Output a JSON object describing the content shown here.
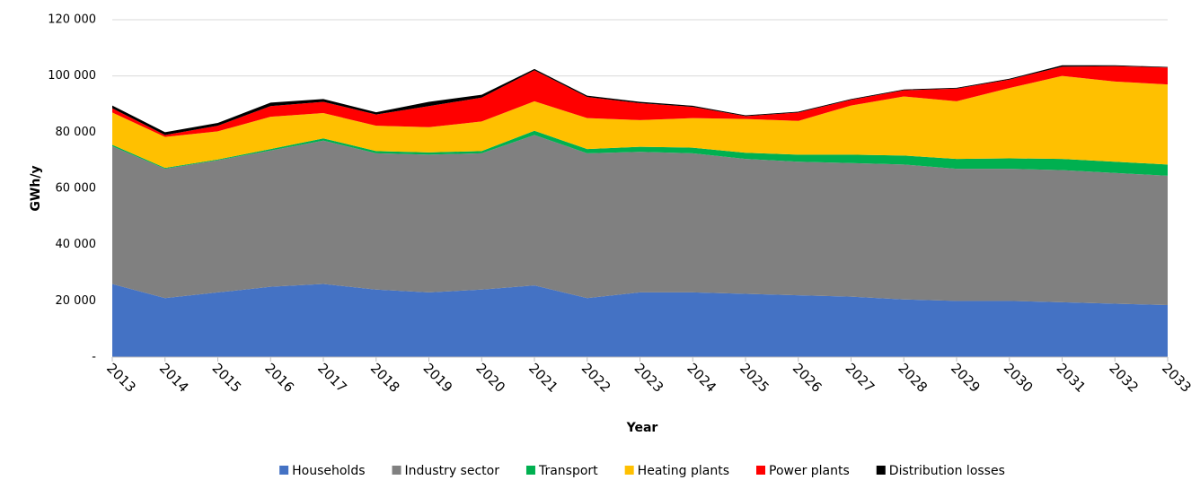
{
  "chart_data": {
    "type": "stacked-area",
    "x_label": "Year",
    "y_label": "GWh/y",
    "categories": [
      "2013",
      "2014",
      "2015",
      "2016",
      "2017",
      "2018",
      "2019",
      "2020",
      "2021",
      "2022",
      "2023",
      "2024",
      "2025",
      "2026",
      "2027",
      "2028",
      "2029",
      "2030",
      "2031",
      "2032",
      "2033"
    ],
    "ylim": [
      0,
      120000
    ],
    "yticks": [
      {
        "value": 0,
        "label": "-"
      },
      {
        "value": 20000,
        "label": "20 000"
      },
      {
        "value": 40000,
        "label": "40 000"
      },
      {
        "value": 60000,
        "label": "60 000"
      },
      {
        "value": 80000,
        "label": "80 000"
      },
      {
        "value": 100000,
        "label": "100 000"
      },
      {
        "value": 120000,
        "label": "120 000"
      }
    ],
    "grid": true,
    "legend": "bottom",
    "series": [
      {
        "name": "Households",
        "color": "#4472c4",
        "values": [
          26000,
          21000,
          23000,
          25000,
          26000,
          24000,
          23000,
          24000,
          25500,
          21000,
          23000,
          23000,
          22500,
          22000,
          21500,
          20500,
          20000,
          20000,
          19500,
          19000,
          18500
        ]
      },
      {
        "name": "Industry sector",
        "color": "#808080",
        "values": [
          49000,
          46000,
          47000,
          48500,
          51000,
          48500,
          49000,
          48500,
          53500,
          51500,
          50000,
          49500,
          48000,
          47500,
          47500,
          48000,
          47000,
          47000,
          47000,
          46500,
          46000
        ]
      },
      {
        "name": "Transport",
        "color": "#00b050",
        "values": [
          500,
          300,
          300,
          500,
          800,
          800,
          800,
          800,
          1500,
          1500,
          1800,
          2000,
          2200,
          2500,
          3000,
          3200,
          3500,
          3700,
          4000,
          4000,
          4000
        ]
      },
      {
        "name": "Heating plants",
        "color": "#ffc000",
        "values": [
          11500,
          11000,
          10000,
          11500,
          9000,
          9000,
          9000,
          10500,
          10500,
          11000,
          9500,
          10500,
          12000,
          12000,
          17500,
          21000,
          20500,
          25000,
          29500,
          28500,
          28500
        ]
      },
      {
        "name": "Power plants",
        "color": "#ff0000",
        "values": [
          1500,
          700,
          2000,
          3800,
          4000,
          4000,
          7500,
          8500,
          11000,
          7500,
          6000,
          4000,
          1000,
          3000,
          2000,
          2200,
          4500,
          3000,
          3300,
          5500,
          6000
        ]
      },
      {
        "name": "Distribution losses",
        "color": "#000000",
        "values": [
          1000,
          1000,
          1000,
          1200,
          1000,
          800,
          1500,
          1000,
          500,
          500,
          500,
          400,
          300,
          300,
          300,
          300,
          300,
          300,
          500,
          300,
          200
        ]
      }
    ]
  }
}
